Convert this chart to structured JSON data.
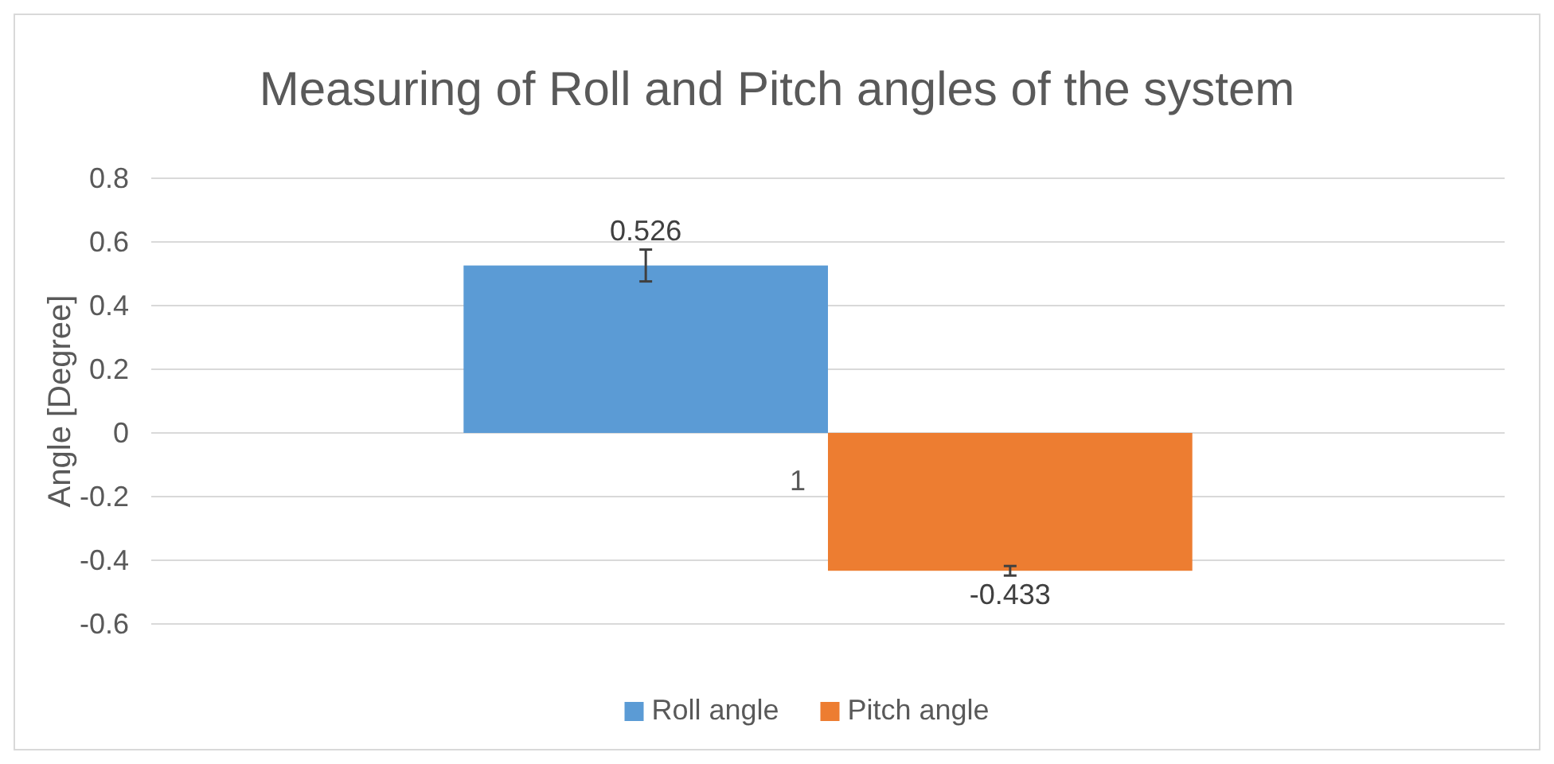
{
  "chart_data": {
    "type": "bar",
    "title": "Measuring of Roll and Pitch angles of the system",
    "ylabel": "Angle [Degree]",
    "categories": [
      "1"
    ],
    "series": [
      {
        "name": "Roll angle",
        "color": "#5b9bd5",
        "values": [
          0.526
        ],
        "errors": [
          0.05
        ]
      },
      {
        "name": "Pitch angle",
        "color": "#ed7d31",
        "values": [
          -0.433
        ],
        "errors": [
          0.015
        ]
      }
    ],
    "ylim": [
      -0.6,
      0.8
    ],
    "yticks": [
      0.8,
      0.6,
      0.4,
      0.2,
      0,
      -0.2,
      -0.4,
      -0.6
    ],
    "grid": "y",
    "legend": "bottom",
    "data_labels": true
  }
}
